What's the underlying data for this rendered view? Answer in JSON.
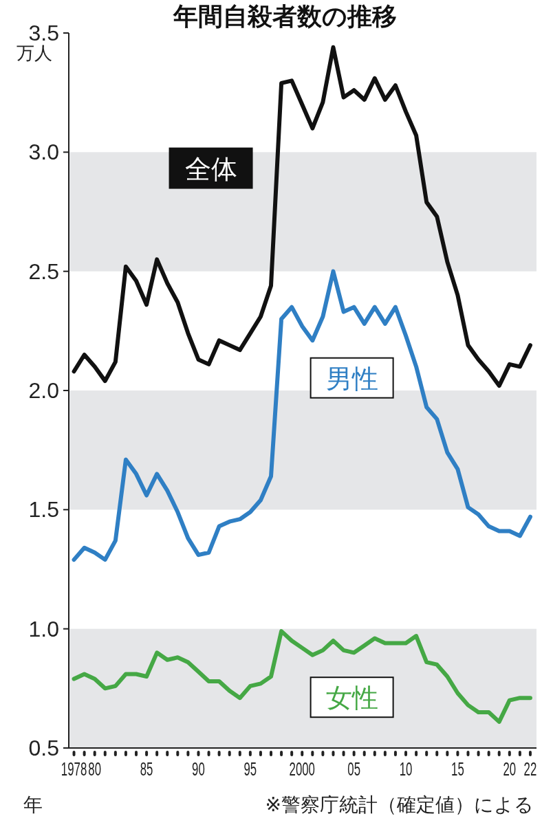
{
  "chart_data": {
    "type": "line",
    "title": "年間自殺者数の推移",
    "ylabel": "万人",
    "xlabel": "年",
    "x": [
      1978,
      1979,
      1980,
      1981,
      1982,
      1983,
      1984,
      1985,
      1986,
      1987,
      1988,
      1989,
      1990,
      1991,
      1992,
      1993,
      1994,
      1995,
      1996,
      1997,
      1998,
      1999,
      2000,
      2001,
      2002,
      2003,
      2004,
      2005,
      2006,
      2007,
      2008,
      2009,
      2010,
      2011,
      2012,
      2013,
      2014,
      2015,
      2016,
      2017,
      2018,
      2019,
      2020,
      2021,
      2022
    ],
    "series": [
      {
        "name": "全体",
        "color": "#111111",
        "values": [
          2.08,
          2.15,
          2.1,
          2.04,
          2.12,
          2.52,
          2.46,
          2.36,
          2.55,
          2.45,
          2.37,
          2.24,
          2.13,
          2.11,
          2.21,
          2.19,
          2.17,
          2.24,
          2.31,
          2.44,
          3.29,
          3.3,
          3.2,
          3.1,
          3.21,
          3.44,
          3.23,
          3.26,
          3.22,
          3.31,
          3.22,
          3.28,
          3.17,
          3.07,
          2.79,
          2.73,
          2.54,
          2.4,
          2.19,
          2.13,
          2.08,
          2.02,
          2.11,
          2.1,
          2.19
        ]
      },
      {
        "name": "男性",
        "color": "#2f7fc4",
        "values": [
          1.29,
          1.34,
          1.32,
          1.29,
          1.37,
          1.71,
          1.65,
          1.56,
          1.65,
          1.58,
          1.49,
          1.38,
          1.31,
          1.32,
          1.43,
          1.45,
          1.46,
          1.49,
          1.54,
          1.64,
          2.3,
          2.35,
          2.27,
          2.21,
          2.31,
          2.5,
          2.33,
          2.35,
          2.28,
          2.35,
          2.28,
          2.35,
          2.23,
          2.1,
          1.93,
          1.88,
          1.74,
          1.67,
          1.51,
          1.48,
          1.43,
          1.41,
          1.41,
          1.39,
          1.47
        ]
      },
      {
        "name": "女性",
        "color": "#45a845",
        "values": [
          0.79,
          0.81,
          0.79,
          0.75,
          0.76,
          0.81,
          0.81,
          0.8,
          0.9,
          0.87,
          0.88,
          0.86,
          0.82,
          0.78,
          0.78,
          0.74,
          0.71,
          0.76,
          0.77,
          0.8,
          0.99,
          0.95,
          0.92,
          0.89,
          0.91,
          0.95,
          0.91,
          0.9,
          0.93,
          0.96,
          0.94,
          0.94,
          0.94,
          0.97,
          0.86,
          0.85,
          0.8,
          0.73,
          0.68,
          0.65,
          0.65,
          0.61,
          0.7,
          0.71,
          0.71
        ]
      }
    ],
    "xlim": [
      1977.5,
      2022.6
    ],
    "xticks": [
      {
        "value": 1978,
        "label": "1978"
      },
      {
        "value": 1979,
        "label": null
      },
      {
        "value": 1980,
        "label": "80"
      },
      {
        "value": 1981,
        "label": null
      },
      {
        "value": 1982,
        "label": null
      },
      {
        "value": 1983,
        "label": null
      },
      {
        "value": 1984,
        "label": null
      },
      {
        "value": 1985,
        "label": "85"
      },
      {
        "value": 1986,
        "label": null
      },
      {
        "value": 1987,
        "label": null
      },
      {
        "value": 1988,
        "label": null
      },
      {
        "value": 1989,
        "label": null
      },
      {
        "value": 1990,
        "label": "90"
      },
      {
        "value": 1991,
        "label": null
      },
      {
        "value": 1992,
        "label": null
      },
      {
        "value": 1993,
        "label": null
      },
      {
        "value": 1994,
        "label": null
      },
      {
        "value": 1995,
        "label": "95"
      },
      {
        "value": 1996,
        "label": null
      },
      {
        "value": 1997,
        "label": null
      },
      {
        "value": 1998,
        "label": null
      },
      {
        "value": 1999,
        "label": null
      },
      {
        "value": 2000,
        "label": "2000"
      },
      {
        "value": 2001,
        "label": null
      },
      {
        "value": 2002,
        "label": null
      },
      {
        "value": 2003,
        "label": null
      },
      {
        "value": 2004,
        "label": null
      },
      {
        "value": 2005,
        "label": "05"
      },
      {
        "value": 2006,
        "label": null
      },
      {
        "value": 2007,
        "label": null
      },
      {
        "value": 2008,
        "label": null
      },
      {
        "value": 2009,
        "label": null
      },
      {
        "value": 2010,
        "label": "10"
      },
      {
        "value": 2011,
        "label": null
      },
      {
        "value": 2012,
        "label": null
      },
      {
        "value": 2013,
        "label": null
      },
      {
        "value": 2014,
        "label": null
      },
      {
        "value": 2015,
        "label": "15"
      },
      {
        "value": 2016,
        "label": null
      },
      {
        "value": 2017,
        "label": null
      },
      {
        "value": 2018,
        "label": null
      },
      {
        "value": 2019,
        "label": null
      },
      {
        "value": 2020,
        "label": "20"
      },
      {
        "value": 2021,
        "label": null
      },
      {
        "value": 2022,
        "label": "22"
      }
    ],
    "ylim": [
      0.5,
      3.5
    ],
    "yticks": [
      0.5,
      {
        "value": 1,
        "label": "1.0"
      },
      1.5,
      {
        "value": 2,
        "label": "2.0"
      },
      2.5,
      {
        "value": 3,
        "label": "3.0"
      },
      3.5
    ],
    "bands": [
      {
        "axis": "y",
        "from": 0.5,
        "to": 1,
        "color": "#e5e6e8"
      },
      {
        "axis": "y",
        "from": 1.5,
        "to": 2,
        "color": "#e5e6e8"
      },
      {
        "axis": "y",
        "from": 2.5,
        "to": 3,
        "color": "#e5e6e8"
      }
    ],
    "grid": false,
    "legend": false,
    "marker": "none",
    "line_style": "solid",
    "annotations": [
      "※警察庁統計（確定値）による"
    ]
  }
}
